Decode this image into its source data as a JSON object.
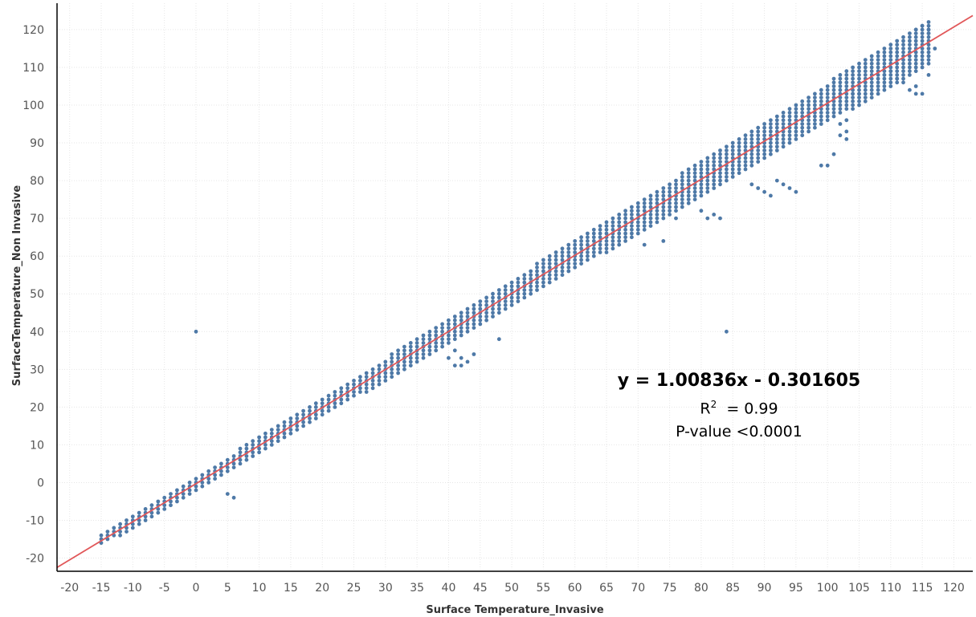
{
  "chart_data": {
    "type": "scatter",
    "title": "",
    "xlabel": "Surface Temperature_Invasive",
    "ylabel": "SurfaceTemperature_Non Invasive",
    "xlim": [
      -22,
      123
    ],
    "ylim": [
      -23.5,
      127
    ],
    "x_ticks": [
      -20,
      -15,
      -10,
      -5,
      0,
      5,
      10,
      15,
      20,
      25,
      30,
      35,
      40,
      45,
      50,
      55,
      60,
      65,
      70,
      75,
      80,
      85,
      90,
      95,
      100,
      105,
      110,
      115,
      120
    ],
    "y_ticks": [
      -20,
      -10,
      0,
      10,
      20,
      30,
      40,
      50,
      60,
      70,
      80,
      90,
      100,
      110,
      120
    ],
    "grid": true,
    "point_color": "#4e79a7",
    "trendline_color": "#e15759",
    "trendline": {
      "slope": 1.00836,
      "intercept": -0.301605
    },
    "annotations": {
      "equation": "y =  1.00836x - 0.301605",
      "r2_label": "R",
      "r2_sup": "2",
      "r2_value": "  = 0.99",
      "p_value": "P-value <0.0001"
    },
    "point_band": {
      "x_start": -15,
      "x_end": 116,
      "x_step": 1,
      "y_step": 1,
      "half_width_start": 1.5,
      "half_width_end": 6
    },
    "outliers": [
      {
        "x": 0,
        "y": 40
      },
      {
        "x": 84,
        "y": 40
      },
      {
        "x": 48,
        "y": 38
      },
      {
        "x": 41,
        "y": 31
      },
      {
        "x": 42,
        "y": 31
      },
      {
        "x": 43,
        "y": 32
      },
      {
        "x": 42,
        "y": 33
      },
      {
        "x": 40,
        "y": 33
      },
      {
        "x": 44,
        "y": 34
      },
      {
        "x": 41,
        "y": 35
      },
      {
        "x": 6,
        "y": -4
      },
      {
        "x": 5,
        "y": -3
      },
      {
        "x": 81,
        "y": 70
      },
      {
        "x": 82,
        "y": 71
      },
      {
        "x": 83,
        "y": 70
      },
      {
        "x": 80,
        "y": 72
      },
      {
        "x": 76,
        "y": 70
      },
      {
        "x": 74,
        "y": 64
      },
      {
        "x": 71,
        "y": 63
      },
      {
        "x": 88,
        "y": 79
      },
      {
        "x": 89,
        "y": 78
      },
      {
        "x": 90,
        "y": 77
      },
      {
        "x": 91,
        "y": 76
      },
      {
        "x": 93,
        "y": 79
      },
      {
        "x": 94,
        "y": 78
      },
      {
        "x": 95,
        "y": 77
      },
      {
        "x": 92,
        "y": 80
      },
      {
        "x": 99,
        "y": 84
      },
      {
        "x": 100,
        "y": 84
      },
      {
        "x": 101,
        "y": 87
      },
      {
        "x": 102,
        "y": 92
      },
      {
        "x": 103,
        "y": 91
      },
      {
        "x": 103,
        "y": 93
      },
      {
        "x": 102,
        "y": 95
      },
      {
        "x": 103,
        "y": 96
      },
      {
        "x": 104,
        "y": 103
      },
      {
        "x": 105,
        "y": 103
      },
      {
        "x": 109,
        "y": 108
      },
      {
        "x": 110,
        "y": 109
      },
      {
        "x": 111,
        "y": 107
      },
      {
        "x": 112,
        "y": 106
      },
      {
        "x": 113,
        "y": 104
      },
      {
        "x": 114,
        "y": 103
      },
      {
        "x": 115,
        "y": 103
      },
      {
        "x": 114,
        "y": 105
      },
      {
        "x": 116,
        "y": 108
      },
      {
        "x": 116,
        "y": 113
      },
      {
        "x": 117,
        "y": 115
      },
      {
        "x": 115,
        "y": 121
      },
      {
        "x": 116,
        "y": 120
      },
      {
        "x": 114,
        "y": 120
      },
      {
        "x": 116,
        "y": 119
      }
    ]
  }
}
